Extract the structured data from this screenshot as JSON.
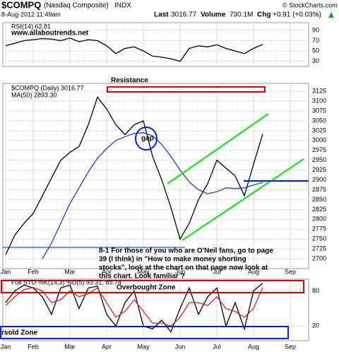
{
  "header": {
    "symbol": "$COMPQ",
    "name": "(Nasdaq Composite)",
    "exchange": "INDX",
    "date": "8-Aug-2012 11:49am",
    "last_label": "Last",
    "last": "3016.77",
    "volume_label": "Volume",
    "volume": "730.1M",
    "chg_label": "Chg",
    "chg": "+0.91 (+0.03%)",
    "copyright": "© StockCharts.com"
  },
  "chart_data": [
    {
      "type": "line",
      "panel": "rsi",
      "grid": true,
      "categories": [
        "Jan",
        null,
        null,
        "Feb",
        null,
        null,
        null,
        "Mar",
        null,
        null,
        null,
        "Apr",
        null,
        null,
        null,
        "May",
        null,
        null,
        null,
        "Jun",
        null,
        null,
        null,
        "Jul",
        null,
        null,
        null,
        "Aug",
        null,
        null,
        null,
        "Sep",
        null,
        null
      ],
      "series": [
        {
          "name": "RSI(14) 62.81",
          "color": "#000000",
          "values": [
            60,
            65,
            70,
            72,
            74,
            73,
            70,
            75,
            68,
            72,
            70,
            60,
            45,
            55,
            58,
            50,
            40,
            38,
            35,
            30,
            55,
            60,
            58,
            62,
            55,
            50,
            45,
            55,
            62.81,
            null,
            null,
            null,
            null,
            null
          ]
        }
      ],
      "ylim": [
        20,
        105
      ],
      "yticks": [
        30,
        50,
        70,
        90
      ],
      "annotation": "www.allaboutrends.net"
    },
    {
      "type": "line",
      "panel": "price",
      "grid": true,
      "categories": [
        "Jan",
        null,
        null,
        "Feb",
        null,
        null,
        null,
        "Mar",
        null,
        null,
        null,
        "Apr",
        null,
        null,
        null,
        "May",
        null,
        null,
        null,
        "Jun",
        null,
        null,
        null,
        "Jul",
        null,
        null,
        null,
        "Aug",
        null,
        null,
        null,
        "Sep",
        null,
        null
      ],
      "series": [
        {
          "name": "$COMPQ (Daily) 3016.77",
          "color": "#000000",
          "values": [
            2710,
            2760,
            2790,
            2815,
            2860,
            2905,
            2950,
            2970,
            2985,
            3040,
            3110,
            3080,
            3040,
            3015,
            3040,
            3050,
            2960,
            2900,
            2830,
            2750,
            2790,
            2850,
            2890,
            2950,
            2930,
            2910,
            2860,
            2940,
            3016.77,
            null,
            null,
            null,
            null,
            null
          ]
        },
        {
          "name": "MA(50) 2893.30",
          "color": "#1f3fbf",
          "values": [
            null,
            null,
            null,
            null,
            2700,
            2740,
            2790,
            2840,
            2880,
            2920,
            2955,
            2980,
            3000,
            3010,
            3018,
            3020,
            3012,
            2990,
            2960,
            2925,
            2895,
            2875,
            2865,
            2870,
            2880,
            2878,
            2880,
            2887,
            2893.3,
            null,
            null,
            null,
            null,
            null
          ]
        }
      ],
      "ylim": [
        2675,
        3145
      ],
      "yticks": [
        2700,
        2725,
        2750,
        2775,
        2800,
        2825,
        2850,
        2875,
        2900,
        2925,
        2950,
        2975,
        3000,
        3025,
        3050,
        3075,
        3100,
        3125
      ],
      "annotations": {
        "resistance": "Resistance",
        "gap": "gap",
        "note": [
          "8-1 For those of you who are O'Neil fans, go to page",
          "39 (I think) in \"How to make money shorting",
          "stocks\", look at the chart on that page now look at",
          "this chart. Look familiar ?"
        ]
      }
    },
    {
      "type": "line",
      "panel": "stoch",
      "grid": true,
      "title": "Full STO %K(14,3) %D(5) 93.31, 85.74",
      "categories": [
        "Jan",
        null,
        null,
        "Feb",
        null,
        null,
        null,
        "Mar",
        null,
        null,
        null,
        "Apr",
        null,
        null,
        null,
        "May",
        null,
        null,
        null,
        "Jun",
        null,
        null,
        null,
        "Jul",
        null,
        null,
        null,
        "Aug",
        null,
        null,
        null,
        "Sep",
        null,
        null
      ],
      "series": [
        {
          "color": "#000000",
          "values": [
            60,
            80,
            90,
            85,
            70,
            40,
            85,
            90,
            50,
            85,
            88,
            40,
            20,
            60,
            80,
            20,
            15,
            30,
            10,
            50,
            85,
            40,
            70,
            85,
            20,
            60,
            15,
            80,
            93.31,
            null,
            null,
            null,
            null,
            null
          ]
        },
        {
          "color": "#e02020",
          "values": [
            55,
            70,
            82,
            86,
            80,
            60,
            65,
            80,
            70,
            75,
            85,
            60,
            35,
            45,
            65,
            45,
            25,
            25,
            20,
            35,
            60,
            60,
            55,
            70,
            50,
            45,
            35,
            50,
            85.74,
            null,
            null,
            null,
            null,
            null
          ]
        }
      ],
      "ylim": [
        -5,
        100
      ],
      "yticks": [
        20,
        80
      ],
      "annotations": {
        "overbought": "Overbought Zone",
        "oversold": "rsold Zone"
      }
    }
  ]
}
